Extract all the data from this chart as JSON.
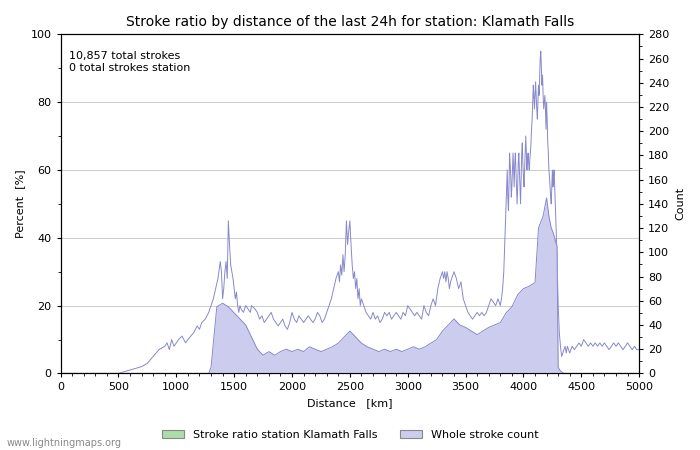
{
  "title": "Stroke ratio by distance of the last 24h for station: Klamath Falls",
  "annotation_line1": "10,857 total strokes",
  "annotation_line2": "0 total strokes station",
  "xlabel": "Distance   [km]",
  "ylabel_left": "Percent  [%]",
  "ylabel_right": "Count",
  "xlim": [
    0,
    5000
  ],
  "ylim_left": [
    0,
    100
  ],
  "ylim_right": [
    0,
    280
  ],
  "xticks": [
    0,
    500,
    1000,
    1500,
    2000,
    2500,
    3000,
    3500,
    4000,
    4500,
    5000
  ],
  "yticks_left": [
    0,
    20,
    40,
    60,
    80,
    100
  ],
  "yticks_right": [
    0,
    20,
    40,
    60,
    80,
    100,
    120,
    140,
    160,
    180,
    200,
    220,
    240,
    260,
    280
  ],
  "legend_label_green": "Stroke ratio station Klamath Falls",
  "legend_label_blue": "Whole stroke count",
  "watermark": "www.lightningmaps.org",
  "line_color": "#8888cc",
  "fill_color_blue": "#ccccee",
  "fill_color_green": "#aaddaa",
  "background_color": "#ffffff",
  "grid_color": "#cccccc",
  "title_fontsize": 10,
  "label_fontsize": 8,
  "tick_fontsize": 8,
  "annotation_fontsize": 8
}
